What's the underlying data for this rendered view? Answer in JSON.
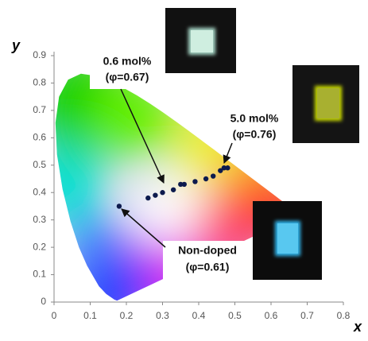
{
  "chart_data": {
    "type": "scatter",
    "x_label": "x",
    "y_label": "y",
    "x": [
      0.18,
      0.26,
      0.28,
      0.3,
      0.33,
      0.35,
      0.36,
      0.39,
      0.42,
      0.44,
      0.46,
      0.47,
      0.48
    ],
    "values": [
      0.35,
      0.38,
      0.39,
      0.4,
      0.41,
      0.43,
      0.43,
      0.44,
      0.45,
      0.46,
      0.48,
      0.49,
      0.49
    ],
    "color": "#0d1b4d",
    "xlim": [
      0,
      0.8
    ],
    "ylim": [
      0,
      0.9
    ],
    "xticks": [
      0,
      0.1,
      0.2,
      0.3,
      0.4,
      0.5,
      0.6,
      0.7,
      0.8
    ],
    "yticks": [
      0,
      0.1,
      0.2,
      0.3,
      0.4,
      0.5,
      0.6,
      0.7,
      0.8,
      0.9
    ],
    "annotations": [
      "0.6 mol%",
      "(φ=0.67)",
      "5.0 mol%",
      "(φ=0.76)",
      "Non-doped",
      "(φ=0.61)"
    ]
  }
}
